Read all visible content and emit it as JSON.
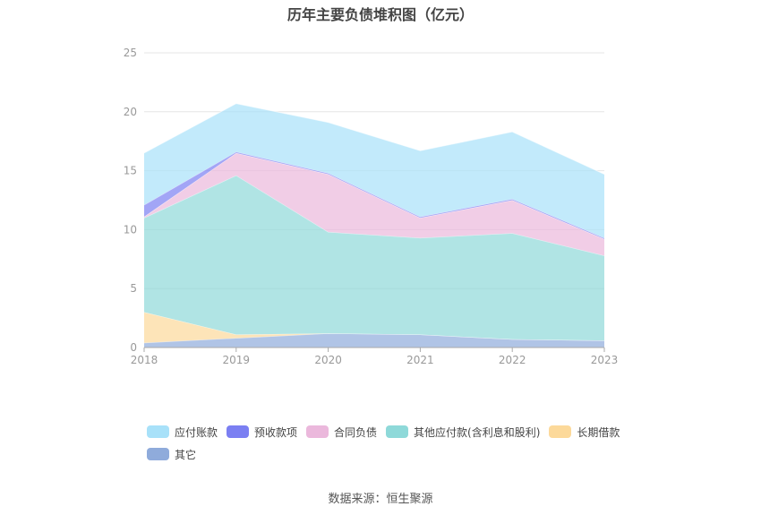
{
  "title": "历年主要负债堆积图（亿元）",
  "source": "数据来源：恒生聚源",
  "chart_data": {
    "type": "area",
    "stacked": true,
    "x": [
      "2018",
      "2019",
      "2020",
      "2021",
      "2022",
      "2023"
    ],
    "ylim": [
      0,
      25
    ],
    "yticks": [
      0,
      5,
      10,
      15,
      20,
      25
    ],
    "grid": true,
    "legend_position": "bottom",
    "series": [
      {
        "name": "其它",
        "color": "#8fabdb",
        "values": [
          0.4,
          0.8,
          1.2,
          1.1,
          0.7,
          0.6
        ]
      },
      {
        "name": "长期借款",
        "color": "#fcd99a",
        "values": [
          2.6,
          0.3,
          0.0,
          0.0,
          0.0,
          0.0
        ]
      },
      {
        "name": "其他应付款(含利息和股利)",
        "color": "#8ed9d9",
        "values": [
          8.0,
          13.5,
          8.6,
          8.2,
          9.0,
          7.2
        ]
      },
      {
        "name": "合同负债",
        "color": "#ebb8dc",
        "values": [
          0.1,
          1.9,
          4.9,
          1.7,
          2.8,
          1.4
        ]
      },
      {
        "name": "预收款项",
        "color": "#7b7ff2",
        "values": [
          1.0,
          0.1,
          0.1,
          0.1,
          0.1,
          0.1
        ]
      },
      {
        "name": "应付账款",
        "color": "#a8e1f9",
        "values": [
          4.4,
          4.1,
          4.3,
          5.6,
          5.7,
          5.4
        ]
      }
    ],
    "legend_order": [
      "应付账款",
      "预收款项",
      "合同负债",
      "其他应付款(含利息和股利)",
      "长期借款",
      "其它"
    ]
  }
}
